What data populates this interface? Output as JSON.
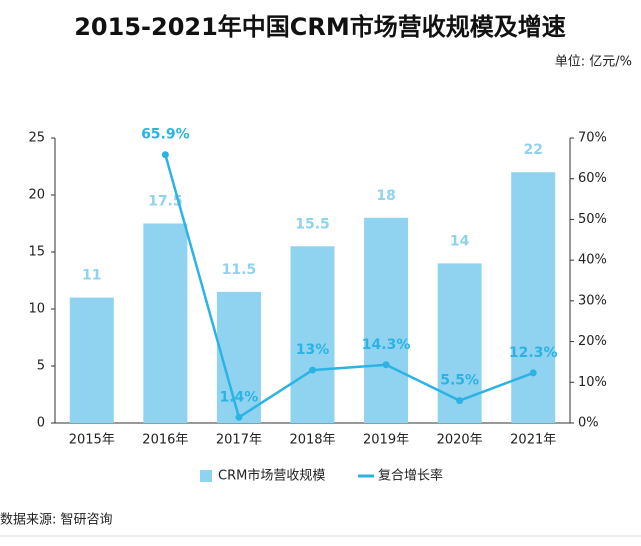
{
  "chart_data": {
    "type": "bar",
    "title": "2015-2021年中国CRM市场营收规模及增速",
    "unit_note": "单位: 亿元/%",
    "source": "数据来源: 智研咨询",
    "categories": [
      "2015年",
      "2016年",
      "2017年",
      "2018年",
      "2019年",
      "2020年",
      "2021年"
    ],
    "series": [
      {
        "name": "CRM市场营收规模",
        "type": "bar",
        "color": "#8fd3f1",
        "values": [
          11,
          17.5,
          11.5,
          15.5,
          18,
          14,
          22
        ]
      },
      {
        "name": "复合增长率",
        "type": "line",
        "axis": "y2",
        "color": "#2bb3e3",
        "values": [
          null,
          65.9,
          1.4,
          13,
          14.3,
          5.5,
          12.3
        ],
        "value_labels": [
          null,
          "65.9%",
          "1.4%",
          "13%",
          "14.3%",
          "5.5%",
          "12.3%"
        ]
      }
    ],
    "ylim": [
      0,
      25
    ],
    "yticks": [
      0,
      5,
      10,
      15,
      20,
      25
    ],
    "y2lim": [
      0,
      70
    ],
    "y2ticks": [
      {
        "value": 0,
        "label": "0%"
      },
      {
        "value": 10,
        "label": "10%"
      },
      {
        "value": 20,
        "label": "20%"
      },
      {
        "value": 30,
        "label": "30%"
      },
      {
        "value": 40,
        "label": "40%"
      },
      {
        "value": 50,
        "label": "50%"
      },
      {
        "value": 60,
        "label": "60%"
      },
      {
        "value": 70,
        "label": "70%"
      }
    ],
    "legend": "bottom"
  }
}
